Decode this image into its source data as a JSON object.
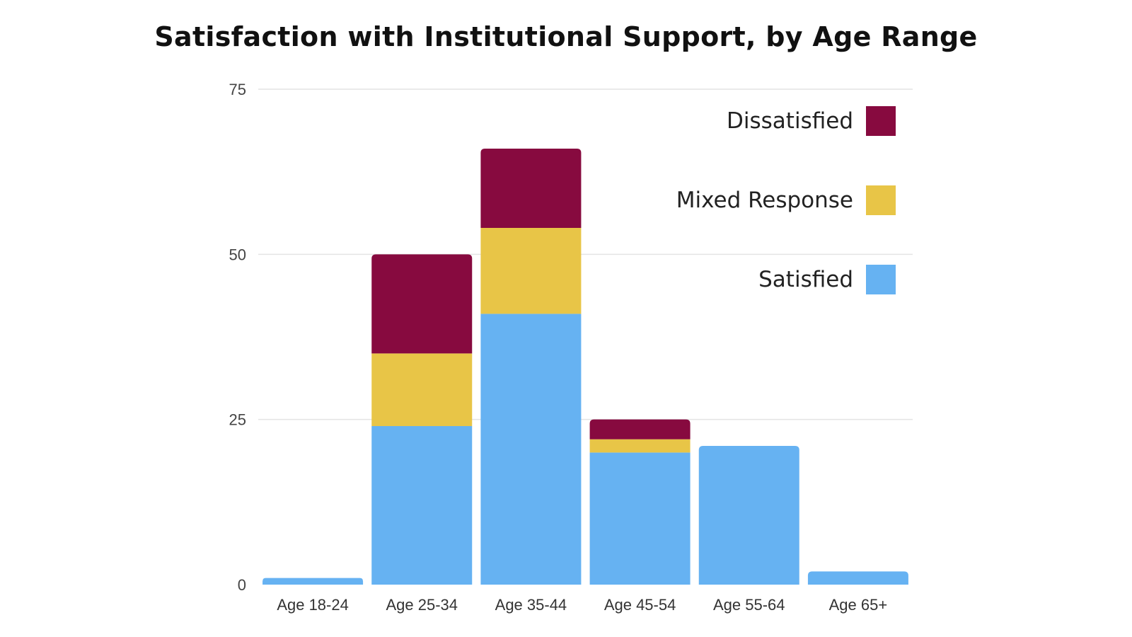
{
  "chart_data": {
    "type": "bar",
    "stacked": true,
    "title": "Satisfaction with Institutional Support, by Age Range",
    "xlabel": "",
    "ylabel": "",
    "categories": [
      "Age 18-24",
      "Age 25-34",
      "Age 35-44",
      "Age 45-54",
      "Age 55-64",
      "Age 65+"
    ],
    "series": [
      {
        "name": "Satisfied",
        "color": "#66B2F2",
        "values": [
          1,
          24,
          41,
          20,
          21,
          2
        ]
      },
      {
        "name": "Mixed Response",
        "color": "#E8C547",
        "values": [
          0,
          11,
          13,
          2,
          0,
          0
        ]
      },
      {
        "name": "Dissatisfied",
        "color": "#870A3F",
        "values": [
          0,
          15,
          12,
          3,
          0,
          0
        ]
      }
    ],
    "ylim": [
      0,
      75
    ],
    "yticks": [
      0,
      25,
      50,
      75
    ],
    "grid": true,
    "legend_position": "top-right",
    "legend_order": [
      "Dissatisfied",
      "Mixed Response",
      "Satisfied"
    ]
  }
}
